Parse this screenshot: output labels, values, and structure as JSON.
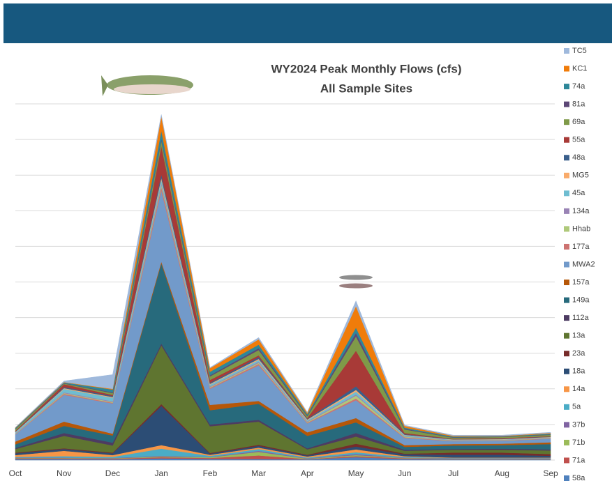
{
  "chart_data": {
    "type": "stacked-area",
    "title": "WY2024 Peak Monthly Flows (cfs)",
    "subtitle": "All Sample Sites",
    "categories": [
      "Oct",
      "Nov",
      "Dec",
      "Jan",
      "Feb",
      "Mar",
      "Apr",
      "May",
      "Jun",
      "Jul",
      "Aug",
      "Sep"
    ],
    "ylim": [
      0,
      1000
    ],
    "yticks": [
      0,
      100,
      200,
      300,
      400,
      500,
      600,
      700,
      800,
      900,
      1000
    ],
    "grid": true,
    "legend": "right",
    "series": [
      {
        "name": "58a",
        "color": "#4f81bd",
        "values": [
          3,
          3,
          2,
          5,
          3,
          3,
          2,
          8,
          3,
          2,
          2,
          2
        ]
      },
      {
        "name": "71a",
        "color": "#c0504d",
        "values": [
          2,
          2,
          2,
          3,
          3,
          10,
          1,
          3,
          2,
          1,
          1,
          1
        ]
      },
      {
        "name": "71b",
        "color": "#9bbb59",
        "values": [
          1,
          1,
          1,
          2,
          2,
          10,
          1,
          3,
          1,
          1,
          1,
          1
        ]
      },
      {
        "name": "37b",
        "color": "#8064a2",
        "values": [
          1,
          1,
          1,
          2,
          1,
          3,
          1,
          3,
          1,
          1,
          1,
          1
        ]
      },
      {
        "name": "5a",
        "color": "#4bacc6",
        "values": [
          2,
          4,
          3,
          20,
          3,
          5,
          2,
          5,
          2,
          1,
          1,
          1
        ]
      },
      {
        "name": "14a",
        "color": "#f79646",
        "values": [
          5,
          15,
          5,
          10,
          3,
          4,
          3,
          8,
          2,
          1,
          1,
          1
        ]
      },
      {
        "name": "18a",
        "color": "#2c4d75",
        "values": [
          5,
          5,
          5,
          110,
          3,
          5,
          3,
          8,
          5,
          8,
          8,
          5
        ]
      },
      {
        "name": "23a",
        "color": "#772c2a",
        "values": [
          2,
          2,
          2,
          5,
          2,
          3,
          2,
          8,
          2,
          6,
          6,
          5
        ]
      },
      {
        "name": "13a",
        "color": "#5f7530",
        "values": [
          10,
          35,
          20,
          165,
          75,
          65,
          15,
          20,
          8,
          8,
          8,
          10
        ]
      },
      {
        "name": "112a",
        "color": "#4d3b62",
        "values": [
          3,
          8,
          8,
          5,
          5,
          5,
          3,
          10,
          3,
          2,
          3,
          3
        ]
      },
      {
        "name": "149a",
        "color": "#276a7c",
        "values": [
          10,
          20,
          20,
          225,
          40,
          45,
          35,
          30,
          8,
          10,
          10,
          15
        ]
      },
      {
        "name": "157a",
        "color": "#b65708",
        "values": [
          8,
          12,
          5,
          5,
          15,
          8,
          10,
          12,
          5,
          4,
          4,
          5
        ]
      },
      {
        "name": "MWA2",
        "color": "#729aca",
        "values": [
          20,
          75,
          85,
          200,
          45,
          100,
          25,
          50,
          20,
          8,
          8,
          10
        ]
      },
      {
        "name": "177a",
        "color": "#cd7371",
        "values": [
          1,
          3,
          2,
          10,
          3,
          4,
          2,
          5,
          2,
          1,
          1,
          1
        ]
      },
      {
        "name": "Hhab",
        "color": "#afc97a",
        "values": [
          1,
          2,
          2,
          5,
          2,
          3,
          2,
          8,
          2,
          1,
          1,
          1
        ]
      },
      {
        "name": "134a",
        "color": "#9983b5",
        "values": [
          1,
          2,
          2,
          5,
          2,
          3,
          2,
          3,
          1,
          1,
          1,
          1
        ]
      },
      {
        "name": "45a",
        "color": "#6fbdd1",
        "values": [
          3,
          10,
          10,
          10,
          5,
          5,
          3,
          8,
          3,
          1,
          1,
          1
        ]
      },
      {
        "name": "MG5",
        "color": "#f9ab6b",
        "values": [
          1,
          2,
          2,
          5,
          2,
          3,
          2,
          5,
          1,
          1,
          1,
          1
        ]
      },
      {
        "name": "48a",
        "color": "#3a5f8b",
        "values": [
          1,
          3,
          3,
          10,
          3,
          5,
          2,
          10,
          2,
          1,
          1,
          1
        ]
      },
      {
        "name": "55a",
        "color": "#a83a37",
        "values": [
          2,
          8,
          3,
          80,
          8,
          5,
          2,
          100,
          3,
          1,
          2,
          1
        ]
      },
      {
        "name": "69a",
        "color": "#7f9a48",
        "values": [
          5,
          2,
          5,
          15,
          10,
          15,
          5,
          40,
          10,
          3,
          3,
          4
        ]
      },
      {
        "name": "81a",
        "color": "#5c4776",
        "values": [
          1,
          1,
          2,
          5,
          3,
          5,
          2,
          10,
          2,
          1,
          1,
          1
        ]
      },
      {
        "name": "74a",
        "color": "#2e8799",
        "values": [
          2,
          2,
          8,
          23,
          10,
          10,
          4,
          15,
          3,
          2,
          1,
          2
        ]
      },
      {
        "name": "KC1",
        "color": "#f07c0a",
        "values": [
          1,
          1,
          2,
          40,
          10,
          15,
          4,
          60,
          5,
          2,
          1,
          2
        ]
      },
      {
        "name": "TC5",
        "color": "#9fb9dc",
        "values": [
          1,
          3,
          40,
          5,
          2,
          5,
          2,
          15,
          2,
          2,
          2,
          2
        ]
      }
    ]
  }
}
